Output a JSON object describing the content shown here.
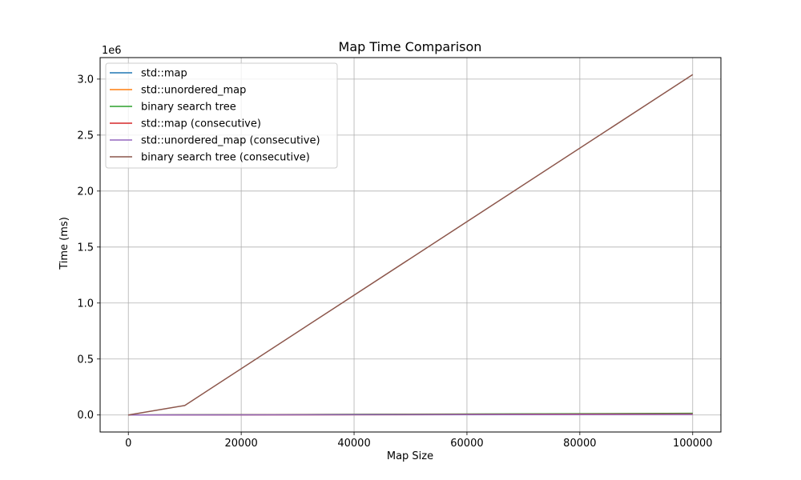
{
  "chart_data": {
    "type": "line",
    "title": "Map Time Comparison",
    "xlabel": "Map Size",
    "ylabel": "Time (ms)",
    "y_offset_text": "1e6",
    "xlim": [
      -5000,
      105000
    ],
    "ylim": [
      -152000,
      3192000
    ],
    "x_ticks": [
      0,
      20000,
      40000,
      60000,
      80000,
      100000
    ],
    "x_tick_labels": [
      "0",
      "20000",
      "40000",
      "60000",
      "80000",
      "100000"
    ],
    "y_ticks": [
      0,
      500000,
      1000000,
      1500000,
      2000000,
      2500000,
      3000000
    ],
    "y_tick_labels": [
      "0.0",
      "0.5",
      "1.0",
      "1.5",
      "2.0",
      "2.5",
      "3.0"
    ],
    "grid": true,
    "legend_position": "upper-left",
    "series": [
      {
        "name": "std::map",
        "color": "#1f77b4",
        "x": [
          0,
          10000,
          100000
        ],
        "values": [
          0,
          1000,
          12000
        ]
      },
      {
        "name": "std::unordered_map",
        "color": "#ff7f0e",
        "x": [
          0,
          10000,
          100000
        ],
        "values": [
          0,
          500,
          6000
        ]
      },
      {
        "name": "binary search tree",
        "color": "#2ca02c",
        "x": [
          0,
          10000,
          100000
        ],
        "values": [
          0,
          1200,
          15000
        ]
      },
      {
        "name": "std::map (consecutive)",
        "color": "#d62728",
        "x": [
          0,
          10000,
          100000
        ],
        "values": [
          0,
          800,
          9000
        ]
      },
      {
        "name": "std::unordered_map (consecutive)",
        "color": "#9467bd",
        "x": [
          0,
          10000,
          100000
        ],
        "values": [
          0,
          400,
          5000
        ]
      },
      {
        "name": "binary search tree (consecutive)",
        "color": "#8c564b",
        "x": [
          0,
          10000,
          100000
        ],
        "values": [
          0,
          85000,
          3040000
        ]
      }
    ]
  }
}
